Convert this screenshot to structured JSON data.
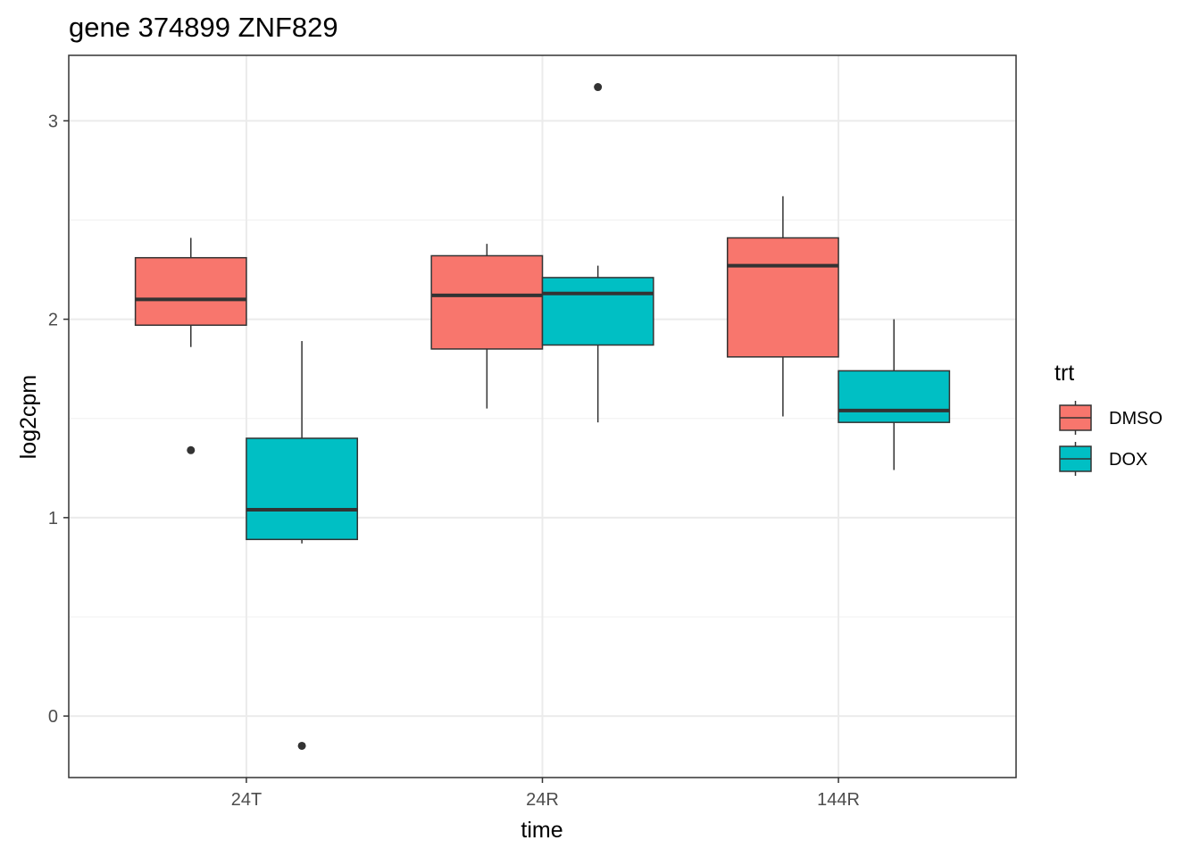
{
  "chart_data": {
    "type": "boxplot",
    "title": "gene 374899 ZNF829",
    "xlabel": "time",
    "ylabel": "log2cpm",
    "categories": [
      "24T",
      "24R",
      "144R"
    ],
    "ylim": [
      -0.31,
      3.33
    ],
    "yticks": [
      0,
      1,
      2,
      3
    ],
    "grid": true,
    "legend": {
      "title": "trt",
      "position": "right"
    },
    "series": [
      {
        "name": "DMSO",
        "color": "#F8766D",
        "boxes": [
          {
            "category": "24T",
            "q1": 1.97,
            "median": 2.1,
            "q3": 2.31,
            "whisker_low": 1.86,
            "whisker_high": 2.41,
            "outliers": [
              1.34
            ]
          },
          {
            "category": "24R",
            "q1": 1.85,
            "median": 2.12,
            "q3": 2.32,
            "whisker_low": 1.55,
            "whisker_high": 2.38,
            "outliers": []
          },
          {
            "category": "144R",
            "q1": 1.81,
            "median": 2.27,
            "q3": 2.41,
            "whisker_low": 1.51,
            "whisker_high": 2.62,
            "outliers": []
          }
        ]
      },
      {
        "name": "DOX",
        "color": "#00BFC4",
        "boxes": [
          {
            "category": "24T",
            "q1": 0.89,
            "median": 1.04,
            "q3": 1.4,
            "whisker_low": 0.87,
            "whisker_high": 1.89,
            "outliers": [
              -0.15
            ]
          },
          {
            "category": "24R",
            "q1": 1.87,
            "median": 2.13,
            "q3": 2.21,
            "whisker_low": 1.48,
            "whisker_high": 2.27,
            "outliers": [
              3.17
            ]
          },
          {
            "category": "144R",
            "q1": 1.48,
            "median": 1.54,
            "q3": 1.74,
            "whisker_low": 1.24,
            "whisker_high": 2.0,
            "outliers": []
          }
        ]
      }
    ]
  }
}
